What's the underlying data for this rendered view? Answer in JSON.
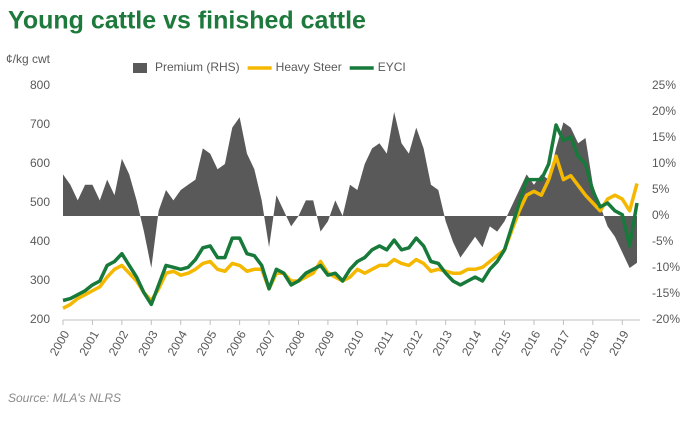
{
  "chart_data": {
    "type": "line",
    "title": "Young cattle vs finished cattle",
    "y_label": "¢/kg cwt",
    "source": "Source: MLA's NLRS",
    "x": [
      2000,
      2000.25,
      2000.5,
      2000.75,
      2001,
      2001.25,
      2001.5,
      2001.75,
      2002,
      2002.25,
      2002.5,
      2002.75,
      2003,
      2003.25,
      2003.5,
      2003.75,
      2004,
      2004.25,
      2004.5,
      2004.75,
      2005,
      2005.25,
      2005.5,
      2005.75,
      2006,
      2006.25,
      2006.5,
      2006.75,
      2007,
      2007.25,
      2007.5,
      2007.75,
      2008,
      2008.25,
      2008.5,
      2008.75,
      2009,
      2009.25,
      2009.5,
      2009.75,
      2010,
      2010.25,
      2010.5,
      2010.75,
      2011,
      2011.25,
      2011.5,
      2011.75,
      2012,
      2012.25,
      2012.5,
      2012.75,
      2013,
      2013.25,
      2013.5,
      2013.75,
      2014,
      2014.25,
      2014.5,
      2014.75,
      2015,
      2015.25,
      2015.5,
      2015.75,
      2016,
      2016.25,
      2016.5,
      2016.75,
      2017,
      2017.25,
      2017.5,
      2017.75,
      2018,
      2018.25,
      2018.5,
      2018.75,
      2019,
      2019.25,
      2019.5
    ],
    "series": [
      {
        "name": "Premium (RHS)",
        "color": "#595959",
        "axis": "y2",
        "kind": "area",
        "values": [
          8,
          6,
          3,
          6,
          6,
          3,
          7,
          4,
          11,
          8,
          3,
          -3,
          -10,
          1,
          5,
          3,
          5,
          6,
          7,
          13,
          12,
          9,
          10,
          17,
          19,
          12,
          9,
          3,
          -6,
          4,
          1,
          -2,
          0,
          3,
          3,
          -3,
          -1,
          3,
          0,
          6,
          5,
          10,
          13,
          14,
          12,
          20,
          14,
          12,
          17,
          13,
          6,
          5,
          -1,
          -5,
          -8,
          -6,
          -4,
          -6,
          -2,
          -3,
          -1,
          2,
          5,
          8,
          6,
          8,
          7,
          13,
          18,
          17,
          14,
          15,
          6,
          2,
          -2,
          -4,
          -7,
          -10,
          -9
        ]
      },
      {
        "name": "Heavy Steer",
        "color": "#f5b800",
        "values": [
          230,
          240,
          255,
          265,
          275,
          285,
          310,
          330,
          340,
          320,
          300,
          270,
          250,
          280,
          320,
          325,
          315,
          320,
          330,
          345,
          350,
          330,
          325,
          345,
          340,
          325,
          330,
          330,
          280,
          320,
          320,
          300,
          300,
          310,
          320,
          350,
          320,
          310,
          300,
          310,
          330,
          320,
          330,
          340,
          340,
          355,
          345,
          340,
          355,
          345,
          325,
          330,
          325,
          320,
          320,
          330,
          330,
          335,
          350,
          365,
          380,
          430,
          480,
          520,
          530,
          520,
          560,
          620,
          560,
          570,
          545,
          520,
          500,
          480,
          510,
          520,
          510,
          480,
          550
        ]
      },
      {
        "name": "EYCI",
        "color": "#17793a",
        "values": [
          250,
          255,
          265,
          275,
          290,
          300,
          340,
          350,
          370,
          340,
          310,
          270,
          240,
          290,
          340,
          335,
          330,
          335,
          355,
          385,
          390,
          360,
          360,
          410,
          410,
          370,
          365,
          340,
          280,
          330,
          320,
          290,
          300,
          320,
          330,
          340,
          315,
          320,
          300,
          330,
          350,
          360,
          380,
          390,
          380,
          405,
          380,
          385,
          410,
          390,
          350,
          345,
          320,
          300,
          290,
          300,
          310,
          300,
          330,
          350,
          380,
          440,
          500,
          560,
          560,
          560,
          600,
          700,
          660,
          670,
          620,
          600,
          530,
          490,
          500,
          480,
          470,
          390,
          500
        ]
      }
    ],
    "xlim": [
      2000,
      2019.5
    ],
    "xticks": [
      2000,
      2001,
      2002,
      2003,
      2004,
      2005,
      2006,
      2007,
      2008,
      2009,
      2010,
      2011,
      2012,
      2013,
      2014,
      2015,
      2016,
      2017,
      2018,
      2019
    ],
    "ylim": [
      200,
      800
    ],
    "yticks": [
      200,
      300,
      400,
      500,
      600,
      700,
      800
    ],
    "y2lim": [
      -20,
      25
    ],
    "y2ticks": [
      {
        "value": -20,
        "label": "-20%"
      },
      {
        "value": -15,
        "label": "-15%"
      },
      {
        "value": -10,
        "label": "-10%"
      },
      {
        "value": -5,
        "label": "-5%"
      },
      {
        "value": 0,
        "label": "0%"
      },
      {
        "value": 5,
        "label": "5%"
      },
      {
        "value": 10,
        "label": "10%"
      },
      {
        "value": 15,
        "label": "15%"
      },
      {
        "value": 20,
        "label": "20%"
      },
      {
        "value": 25,
        "label": "25%"
      }
    ],
    "grid": false,
    "legend": "top"
  }
}
